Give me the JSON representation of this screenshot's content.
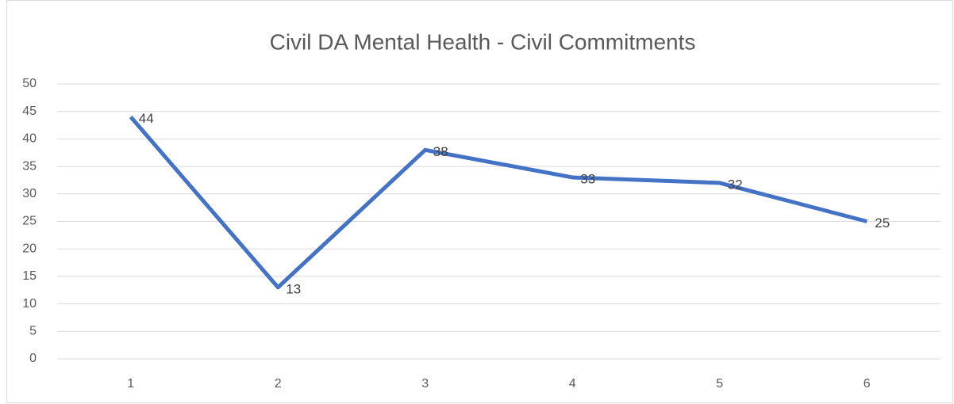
{
  "chart_data": {
    "type": "line",
    "title": "Civil DA Mental Health - Civil Commitments",
    "categories": [
      "1",
      "2",
      "3",
      "4",
      "5",
      "6"
    ],
    "series": [
      {
        "name": "Civil Commitments",
        "color": "#4472c4",
        "values": [
          44,
          13,
          38,
          33,
          32,
          25
        ]
      }
    ],
    "ylim": [
      0,
      50
    ],
    "yticks": [
      0,
      5,
      10,
      15,
      20,
      25,
      30,
      35,
      40,
      45,
      50
    ],
    "grid": true,
    "data_labels": true
  }
}
